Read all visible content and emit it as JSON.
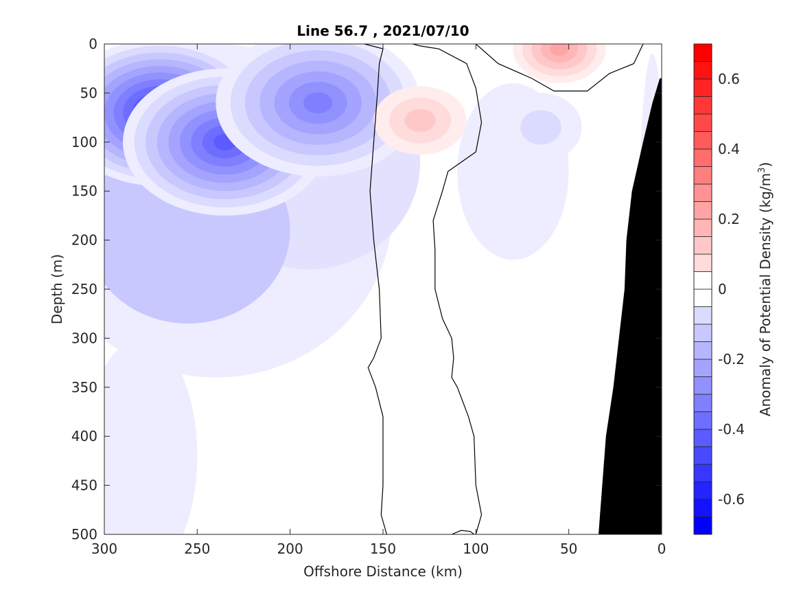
{
  "chart_data": {
    "type": "heatmap",
    "subtype": "filled-contour depth section",
    "title": "Line 56.7 , 2021/07/10",
    "xlabel": "Offshore Distance (km)",
    "ylabel": "Depth (m)",
    "xlim": [
      300,
      0
    ],
    "x_reversed": true,
    "ylim": [
      0,
      500
    ],
    "y_reversed": true,
    "x_ticks": [
      300,
      250,
      200,
      150,
      100,
      50,
      0
    ],
    "y_ticks": [
      0,
      50,
      100,
      150,
      200,
      250,
      300,
      350,
      400,
      450,
      500
    ],
    "colorbar": {
      "label_prefix": "Anomaly of Potential Density (kg/m",
      "label_sup": "3",
      "label_suffix": ")",
      "range": [
        -0.7,
        0.7
      ],
      "step": 0.05,
      "ticks": [
        -0.6,
        -0.4,
        -0.2,
        0,
        0.2,
        0.4,
        0.6
      ],
      "tick_labels": [
        "-0.6",
        "-0.4",
        "-0.2",
        "0",
        "0.2",
        "0.4",
        "0.6"
      ],
      "negative_color": "#0000ff",
      "positive_color": "#ff0000",
      "zero_color": "#ffffff"
    },
    "features": [
      {
        "name": "negative anomaly core",
        "x": 270,
        "y": 70,
        "value": -0.55
      },
      {
        "name": "secondary negative core",
        "x": 235,
        "y": 100,
        "value": -0.45
      },
      {
        "name": "shelf-break negative patch",
        "x": 185,
        "y": 60,
        "value": -0.35
      },
      {
        "name": "positive eddy core",
        "x": 130,
        "y": 78,
        "value": 0.17
      },
      {
        "name": "near-shore surface positive",
        "x": 55,
        "y": 5,
        "value": 0.25
      },
      {
        "name": "weak negative patch",
        "x": 65,
        "y": 85,
        "value": -0.1
      }
    ],
    "zero_contours": [
      {
        "name": "offshore zero contour",
        "points": [
          [
            160,
            0
          ],
          [
            150,
            5
          ],
          [
            152,
            20
          ],
          [
            153,
            50
          ],
          [
            155,
            100
          ],
          [
            157,
            150
          ],
          [
            155,
            200
          ],
          [
            152,
            250
          ],
          [
            151,
            300
          ],
          [
            155,
            320
          ],
          [
            158,
            330
          ],
          [
            154,
            350
          ],
          [
            150,
            380
          ],
          [
            150,
            400
          ],
          [
            150,
            450
          ],
          [
            151,
            480
          ],
          [
            148,
            500
          ]
        ]
      },
      {
        "name": "inshore zero contour",
        "points": [
          [
            134,
            0
          ],
          [
            130,
            2
          ],
          [
            120,
            5
          ],
          [
            105,
            20
          ],
          [
            100,
            45
          ],
          [
            97,
            80
          ],
          [
            100,
            110
          ],
          [
            115,
            130
          ],
          [
            118,
            150
          ],
          [
            123,
            180
          ],
          [
            122,
            210
          ],
          [
            122,
            250
          ],
          [
            118,
            280
          ],
          [
            113,
            300
          ],
          [
            112,
            320
          ],
          [
            113,
            340
          ],
          [
            110,
            350
          ],
          [
            104,
            380
          ],
          [
            101,
            400
          ],
          [
            100,
            450
          ],
          [
            97,
            480
          ],
          [
            100,
            500
          ]
        ]
      },
      {
        "name": "bottom contour loop",
        "points": [
          [
            113,
            500
          ],
          [
            108,
            496
          ],
          [
            103,
            497
          ],
          [
            101,
            500
          ]
        ]
      },
      {
        "name": "surface positive patch contour",
        "points": [
          [
            10,
            0
          ],
          [
            15,
            20
          ],
          [
            28,
            30
          ],
          [
            40,
            48
          ],
          [
            58,
            48
          ],
          [
            70,
            35
          ],
          [
            88,
            20
          ],
          [
            100,
            0
          ]
        ]
      }
    ],
    "bathymetry": [
      [
        34,
        500
      ],
      [
        30,
        400
      ],
      [
        26,
        350
      ],
      [
        20,
        250
      ],
      [
        19,
        200
      ],
      [
        16,
        150
      ],
      [
        10,
        100
      ],
      [
        5,
        60
      ],
      [
        1,
        35
      ],
      [
        0,
        35
      ],
      [
        0,
        500
      ]
    ],
    "bathymetry_color": "#000000"
  }
}
